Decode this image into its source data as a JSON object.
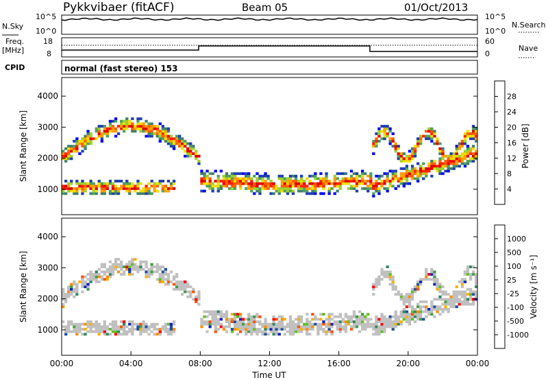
{
  "header": {
    "station": "Pykkvibaer (fitACF)",
    "beam": "Beam 05",
    "date": "01/Oct/2013"
  },
  "noise_panel": {
    "left_label": "N.Sky",
    "right_label": "N.Search",
    "left_ticks": [
      "10^5",
      "10^0"
    ],
    "right_ticks": [
      "10^5",
      "10^0"
    ]
  },
  "freq_panel": {
    "left_label_1": "Freq.",
    "left_label_2": "[MHz]",
    "right_label": "Nave",
    "left_ticks": [
      "18",
      "8"
    ],
    "right_ticks": [
      "60",
      "0"
    ]
  },
  "cpid_panel": {
    "label": "CPID",
    "text": "normal (fast stereo) 153"
  },
  "colors": {
    "power_scale": [
      "#0000ff",
      "#1f3fb0",
      "#3f7f6f",
      "#4fa05f",
      "#9fcf30",
      "#f0e000",
      "#ffa000",
      "#ff6000",
      "#ff2000",
      "#e00000"
    ],
    "velocity_scale": [
      "#ff0000",
      "#ff5000",
      "#ff8c00",
      "#ffb000",
      "#c0c0c0",
      "#60c020",
      "#40a040",
      "#2e8a5a",
      "#2050a0",
      "#1020c0"
    ]
  },
  "chart_data": [
    {
      "type": "heatmap",
      "name": "power",
      "ylabel": "Slant Range [km]",
      "yticks": [
        "1000",
        "2000",
        "3000",
        "4000"
      ],
      "ylim": [
        180,
        4600
      ],
      "xlim": [
        0,
        24
      ],
      "colorbar_label": "Power [dB]",
      "colorbar_ticks": [
        "4",
        "8",
        "12",
        "16",
        "20",
        "24",
        "28"
      ],
      "colorbar_range": [
        0,
        32
      ]
    },
    {
      "type": "heatmap",
      "name": "velocity",
      "ylabel": "Slant Range [km]",
      "yticks": [
        "1000",
        "2000",
        "3000",
        "4000"
      ],
      "ylim": [
        180,
        4600
      ],
      "xlim": [
        0,
        24
      ],
      "xlabel": "Time UT",
      "xticks": [
        "00:00",
        "04:00",
        "08:00",
        "12:00",
        "16:00",
        "20:00",
        "00:00"
      ],
      "colorbar_label": "Velocity [m s⁻¹]",
      "colorbar_ticks": [
        "1000",
        "500",
        "100",
        "25",
        "-25",
        "-100",
        "-500",
        "-1000"
      ]
    }
  ]
}
